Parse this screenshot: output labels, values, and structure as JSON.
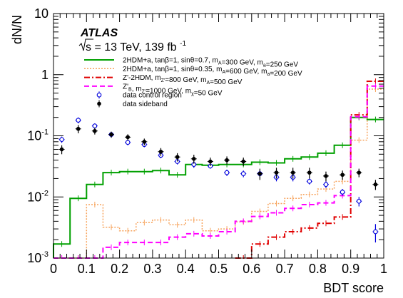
{
  "chart_data": {
    "type": "line",
    "ylabel": "dN/N",
    "xlabel": "BDT score",
    "x_scale": "linear",
    "y_scale": "log",
    "xlim": [
      0,
      1
    ],
    "ylim": [
      0.001,
      10
    ],
    "x_ticks": [
      "0",
      "0.1",
      "0.2",
      "0.3",
      "0.4",
      "0.5",
      "0.6",
      "0.7",
      "0.8",
      "0.9",
      "1"
    ],
    "y_ticks": [
      {
        "label": "10",
        "exp": "-3",
        "value": 0.001
      },
      {
        "label": "10",
        "exp": "-2",
        "value": 0.01
      },
      {
        "label": "10",
        "exp": "-1",
        "value": 0.1
      },
      {
        "label": "1",
        "exp": "",
        "value": 1
      },
      {
        "label": "10",
        "exp": "",
        "value": 10
      }
    ],
    "annotations": {
      "experiment": "ATLAS",
      "energy_prefix": "s = 13 TeV, 139 fb",
      "energy_exp": "-1"
    },
    "legend_position": "top-left",
    "bin_edges": [
      0,
      0.05,
      0.1,
      0.15,
      0.2,
      0.25,
      0.3,
      0.35,
      0.4,
      0.45,
      0.5,
      0.55,
      0.6,
      0.65,
      0.7,
      0.75,
      0.8,
      0.85,
      0.9,
      0.95,
      1.0
    ],
    "series": [
      {
        "name": "2HDM+a, tanβ=1, sinθ=0.7, m_A=300 GeV, m_a=250 GeV",
        "name_parts": [
          [
            "t",
            "2HDM+a, tanβ=1, sinθ=0.7, m"
          ],
          [
            "sub",
            "A"
          ],
          [
            "t",
            "=300 GeV, m"
          ],
          [
            "sub",
            "a"
          ],
          [
            "t",
            "=250 GeV"
          ]
        ],
        "style": "hist",
        "color": "#00a000",
        "dash": "",
        "width": 2,
        "values": [
          0.0017,
          0.0095,
          0.016,
          0.025,
          0.026,
          0.026,
          0.027,
          0.023,
          0.034,
          0.033,
          0.034,
          0.034,
          0.037,
          0.036,
          0.042,
          0.045,
          0.052,
          0.07,
          0.2,
          0.185
        ]
      },
      {
        "name": "2HDM+a, tanβ=1, sinθ=0.35, m_A=600 GeV, m_a=200 GeV",
        "name_parts": [
          [
            "t",
            "2HDM+a, tanβ=1, sinθ=0.35, m"
          ],
          [
            "sub",
            "A"
          ],
          [
            "t",
            "=600 GeV, m"
          ],
          [
            "sub",
            "a"
          ],
          [
            "t",
            "=200 GeV"
          ]
        ],
        "style": "hist",
        "color": "#f7a35c",
        "dash": "2,2",
        "width": 1.5,
        "values": [
          0.001,
          0.001,
          0.0075,
          0.0032,
          0.0028,
          0.0038,
          0.0042,
          0.0035,
          0.0042,
          0.0028,
          0.003,
          0.0039,
          0.0058,
          0.0078,
          0.0095,
          0.011,
          0.0135,
          0.018,
          0.085,
          0.58
        ]
      },
      {
        "name": "Z'-2HDM, m_Z'=800 GeV, m_A=500 GeV",
        "name_parts": [
          [
            "t",
            "Z'-2HDM, m"
          ],
          [
            "sub",
            "Z'"
          ],
          [
            "t",
            "=800 GeV, m"
          ],
          [
            "sub",
            "A"
          ],
          [
            "t",
            "=500 GeV"
          ]
        ],
        "style": "hist",
        "color": "#e00000",
        "dash": "8,3,2,3",
        "width": 2,
        "values": [
          null,
          null,
          null,
          null,
          null,
          null,
          null,
          null,
          null,
          null,
          null,
          0.0009,
          0.0017,
          0.0022,
          0.0027,
          0.0031,
          0.0037,
          0.0047,
          0.22,
          0.78
        ]
      },
      {
        "name": "Z'_B, m_Z'=1000 GeV, m_χ=50 GeV",
        "name_parts": [
          [
            "t",
            "Z'"
          ],
          [
            "sub",
            "B"
          ],
          [
            "t",
            ", m"
          ],
          [
            "sub",
            "Z'"
          ],
          [
            "t",
            "=1000 GeV, m"
          ],
          [
            "sub",
            "χ"
          ],
          [
            "t",
            "=50 GeV"
          ]
        ],
        "style": "hist",
        "color": "#ff00ff",
        "dash": "7,4",
        "width": 2,
        "values": [
          0.00095,
          0.001,
          0.001,
          0.0015,
          0.0018,
          0.0018,
          0.0018,
          0.0022,
          0.0025,
          0.0023,
          0.0027,
          0.004,
          0.0048,
          0.0055,
          0.0065,
          0.0075,
          0.008,
          0.0105,
          0.205,
          0.65
        ]
      },
      {
        "name": "data control region",
        "name_parts": [
          [
            "t",
            "data control region"
          ]
        ],
        "style": "open-marker",
        "color": "#0000dd",
        "x": [
          0.025,
          0.075,
          0.125,
          0.175,
          0.225,
          0.275,
          0.325,
          0.375,
          0.425,
          0.475,
          0.525,
          0.575,
          0.625,
          0.675,
          0.725,
          0.775,
          0.825,
          0.875,
          0.925,
          0.975
        ],
        "values": [
          0.087,
          0.18,
          0.145,
          0.105,
          0.078,
          0.072,
          0.048,
          0.038,
          0.034,
          0.032,
          0.025,
          0.024,
          0.024,
          0.021,
          0.021,
          0.018,
          0.016,
          0.012,
          0.0085,
          0.0027
        ],
        "errors": [
          0.01,
          0.02,
          0.015,
          0.01,
          0.008,
          0.007,
          0.005,
          0.004,
          0.004,
          0.003,
          0.003,
          0.003,
          0.003,
          0.003,
          0.003,
          0.002,
          0.002,
          0.0015,
          0.0015,
          0.0009
        ]
      },
      {
        "name": "data sideband",
        "name_parts": [
          [
            "t",
            "data sideband"
          ]
        ],
        "style": "filled-marker",
        "color": "#000000",
        "x": [
          0.025,
          0.075,
          0.125,
          0.175,
          0.225,
          0.275,
          0.325,
          0.375,
          0.425,
          0.475,
          0.525,
          0.575,
          0.625,
          0.675,
          0.725,
          0.775,
          0.825,
          0.875,
          0.925,
          0.975
        ],
        "values": [
          0.06,
          0.13,
          0.12,
          0.105,
          0.095,
          0.08,
          0.055,
          0.045,
          0.042,
          0.038,
          0.04,
          0.038,
          0.024,
          0.025,
          0.025,
          0.025,
          0.022,
          0.023,
          0.025,
          0.016
        ],
        "errors": [
          0.01,
          0.02,
          0.015,
          0.012,
          0.011,
          0.01,
          0.008,
          0.007,
          0.007,
          0.006,
          0.006,
          0.006,
          0.005,
          0.005,
          0.005,
          0.005,
          0.004,
          0.004,
          0.004,
          0.003
        ]
      }
    ]
  }
}
